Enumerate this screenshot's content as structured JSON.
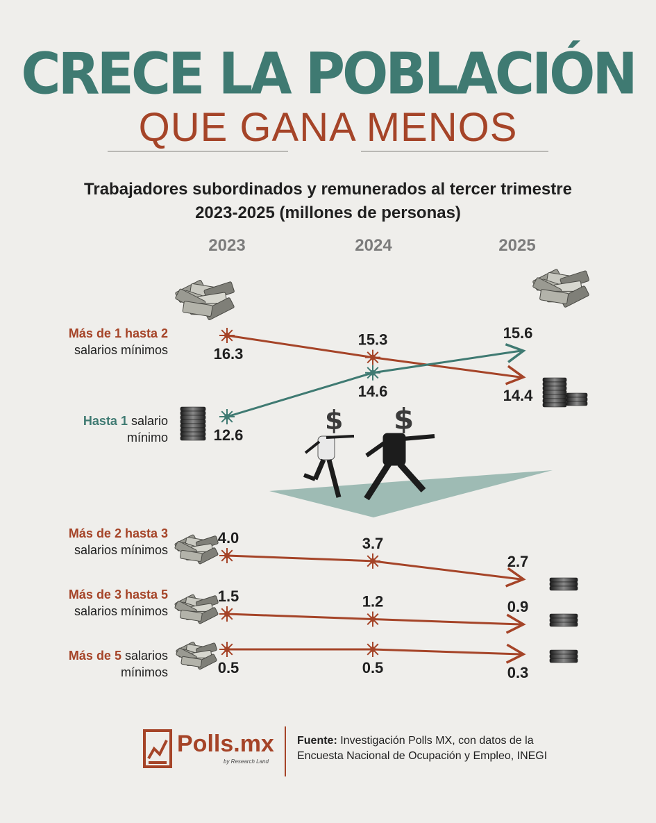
{
  "title_line1": "CRECE LA POBLACIÓN",
  "title_line2": "QUE GANA MENOS",
  "subtitle_line1": "Trabajadores subordinados y remunerados al tercer trimestre",
  "subtitle_line2": "2023-2025 (millones de personas)",
  "rows": [
    {
      "lead": "Más de 1 hasta 2",
      "rest": "",
      "line2": "salarios mínimos",
      "lead_color": "orange"
    },
    {
      "lead": "Hasta 1",
      "rest": " salario",
      "line2": "mínimo",
      "lead_color": "teal"
    },
    {
      "lead": "Más de 2 hasta 3",
      "rest": "",
      "line2": "salarios mínimos",
      "lead_color": "orange"
    },
    {
      "lead": "Más de 3 hasta 5",
      "rest": "",
      "line2": "salarios mínimos",
      "lead_color": "orange"
    },
    {
      "lead": "Más de 5",
      "rest": " salarios",
      "line2": "mínimos",
      "lead_color": "orange"
    }
  ],
  "chart_data": {
    "type": "line",
    "x": [
      "2023",
      "2024",
      "2025"
    ],
    "series": [
      {
        "name": "Más de 1 hasta 2 salarios mínimos",
        "values": [
          16.3,
          15.3,
          14.4
        ],
        "color": "#a54428"
      },
      {
        "name": "Hasta 1 salario mínimo",
        "values": [
          12.6,
          14.6,
          15.6
        ],
        "color": "#3f7a72"
      },
      {
        "name": "Más de 2 hasta 3 salarios mínimos",
        "values": [
          4.0,
          3.7,
          2.7
        ],
        "color": "#a54428"
      },
      {
        "name": "Más de 3 hasta 5 salarios mínimos",
        "values": [
          1.5,
          1.2,
          0.9
        ],
        "color": "#a54428"
      },
      {
        "name": "Más de 5 salarios mínimos",
        "values": [
          0.5,
          0.5,
          0.3
        ],
        "color": "#a54428"
      }
    ],
    "value_labels": [
      [
        "16.3",
        "15.3",
        "14.4"
      ],
      [
        "12.6",
        "14.6",
        "15.6"
      ],
      [
        "4.0",
        "3.7",
        "2.7"
      ],
      [
        "1.5",
        "1.2",
        "0.9"
      ],
      [
        "0.5",
        "0.5",
        "0.3"
      ]
    ]
  },
  "logo": {
    "name": "Polls.mx",
    "tagline": "by Research Land"
  },
  "source": {
    "label": "Fuente:",
    "text_line1": " Investigación Polls MX, con datos de la",
    "text_line2": "Encuesta Nacional de Ocupación y Empleo, INEGI"
  },
  "colors": {
    "orange": "#a54428",
    "teal": "#3f7a72",
    "background": "#efeeeb"
  },
  "icons": [
    "money-stack-icon",
    "coin-stack-icon",
    "running-figures-illustration",
    "polls-logo-icon"
  ]
}
